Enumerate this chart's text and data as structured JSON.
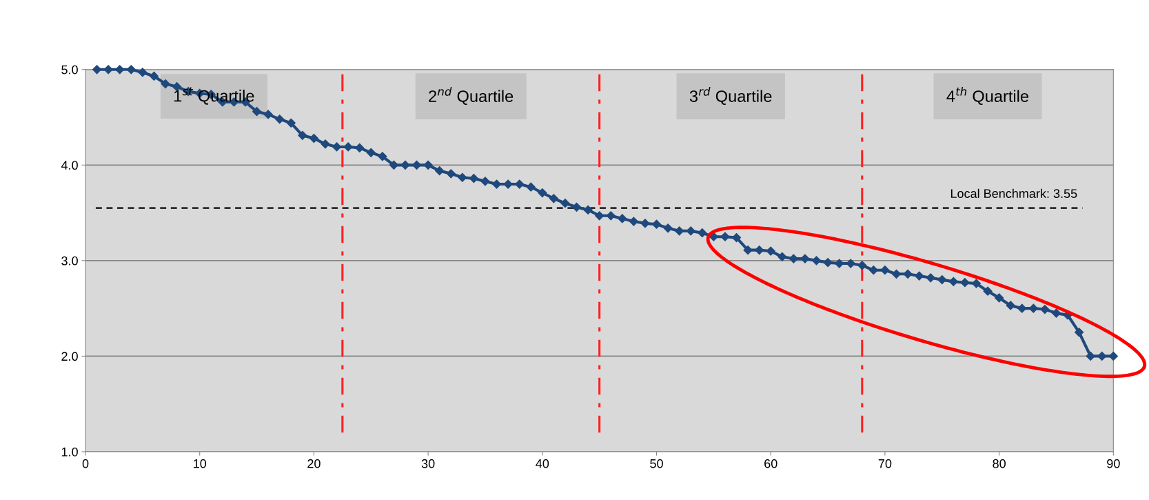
{
  "chart_data": {
    "type": "line",
    "x": [
      1,
      2,
      3,
      4,
      5,
      6,
      7,
      8,
      9,
      10,
      11,
      12,
      13,
      14,
      15,
      16,
      17,
      18,
      19,
      20,
      21,
      22,
      23,
      24,
      25,
      26,
      27,
      28,
      29,
      30,
      31,
      32,
      33,
      34,
      35,
      36,
      37,
      38,
      39,
      40,
      41,
      42,
      43,
      44,
      45,
      46,
      47,
      48,
      49,
      50,
      51,
      52,
      53,
      54,
      55,
      56,
      57,
      58,
      59,
      60,
      61,
      62,
      63,
      64,
      65,
      66,
      67,
      68,
      69,
      70,
      71,
      72,
      73,
      74,
      75,
      76,
      77,
      78,
      79,
      80,
      81,
      82,
      83,
      84,
      85,
      86,
      87,
      88,
      89,
      90
    ],
    "series": [
      {
        "color": "#1f497d",
        "values": [
          5.0,
          5.0,
          5.0,
          5.0,
          4.97,
          4.93,
          4.85,
          4.82,
          4.77,
          4.75,
          4.74,
          4.66,
          4.66,
          4.66,
          4.56,
          4.53,
          4.48,
          4.44,
          4.31,
          4.28,
          4.22,
          4.19,
          4.19,
          4.18,
          4.13,
          4.09,
          4.0,
          4.0,
          4.0,
          4.0,
          3.94,
          3.91,
          3.87,
          3.86,
          3.83,
          3.8,
          3.8,
          3.8,
          3.77,
          3.71,
          3.65,
          3.6,
          3.56,
          3.53,
          3.47,
          3.47,
          3.44,
          3.41,
          3.39,
          3.38,
          3.34,
          3.31,
          3.31,
          3.29,
          3.25,
          3.25,
          3.24,
          3.11,
          3.11,
          3.1,
          3.04,
          3.02,
          3.02,
          3.0,
          2.98,
          2.97,
          2.97,
          2.95,
          2.9,
          2.9,
          2.86,
          2.86,
          2.84,
          2.82,
          2.8,
          2.78,
          2.77,
          2.76,
          2.68,
          2.61,
          2.53,
          2.5,
          2.5,
          2.49,
          2.45,
          2.43,
          2.25,
          2.0,
          2.0,
          2.0
        ]
      }
    ],
    "marker": "diamond",
    "line_style": "solid",
    "xlim": [
      0,
      90
    ],
    "xticks": [
      0,
      10,
      20,
      30,
      40,
      50,
      60,
      70,
      80,
      90
    ],
    "ylim": [
      1.0,
      5.0
    ],
    "yticks": [
      {
        "value": 1,
        "label": "1.0"
      },
      {
        "value": 2,
        "label": "2.0"
      },
      {
        "value": 3,
        "label": "3.0"
      },
      {
        "value": 4,
        "label": "4.0"
      },
      {
        "value": 5,
        "label": "5.0"
      }
    ],
    "grid": "y",
    "ref_lines": [
      {
        "axis": "y",
        "value": 3.55,
        "label": "Local Benchmark: 3.55",
        "color": "#000000",
        "line_style": "dashed"
      },
      {
        "axis": "x",
        "value": 22.5,
        "color": "#ff2020",
        "line_style": "dashdot"
      },
      {
        "axis": "x",
        "value": 45,
        "color": "#ff2020",
        "line_style": "dashdot"
      },
      {
        "axis": "x",
        "value": 68,
        "color": "#ff2020",
        "line_style": "dashdot"
      }
    ],
    "annotations": [
      "1$^{st}$ Quartile",
      "2$^{nd}$ Quartile",
      "3$^{rd}$ Quartile",
      "4$^{th}$ Quartile"
    ]
  }
}
